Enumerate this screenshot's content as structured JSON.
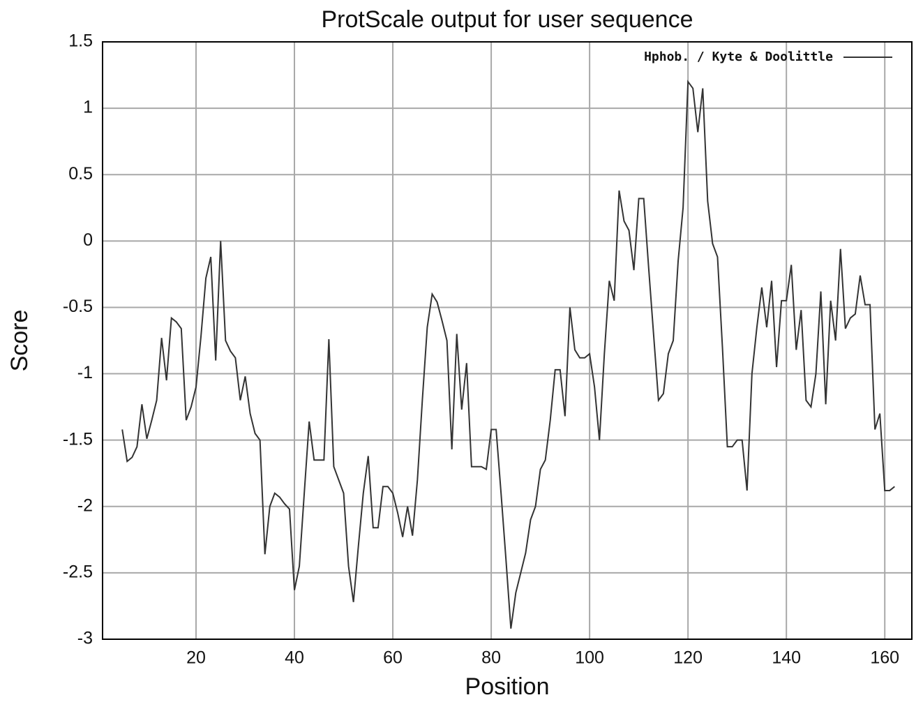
{
  "chart_data": {
    "type": "line",
    "title": "ProtScale output for user sequence",
    "x_label": "Position",
    "y_label": "Score",
    "x": [
      5,
      6,
      7,
      8,
      9,
      10,
      11,
      12,
      13,
      14,
      15,
      16,
      17,
      18,
      19,
      20,
      21,
      22,
      23,
      24,
      25,
      26,
      27,
      28,
      29,
      30,
      31,
      32,
      33,
      34,
      35,
      36,
      37,
      38,
      39,
      40,
      41,
      42,
      43,
      44,
      45,
      46,
      47,
      48,
      49,
      50,
      51,
      52,
      53,
      54,
      55,
      56,
      57,
      58,
      59,
      60,
      61,
      62,
      63,
      64,
      65,
      66,
      67,
      68,
      69,
      70,
      71,
      72,
      73,
      74,
      75,
      76,
      77,
      78,
      79,
      80,
      81,
      82,
      83,
      84,
      85,
      86,
      87,
      88,
      89,
      90,
      91,
      92,
      93,
      94,
      95,
      96,
      97,
      98,
      99,
      100,
      101,
      102,
      103,
      104,
      105,
      106,
      107,
      108,
      109,
      110,
      111,
      112,
      113,
      114,
      115,
      116,
      117,
      118,
      119,
      120,
      121,
      122,
      123,
      124,
      125,
      126,
      127,
      128,
      129,
      130,
      131,
      132,
      133,
      134,
      135,
      136,
      137,
      138,
      139,
      140,
      141,
      142,
      143,
      144,
      145,
      146,
      147,
      148,
      149,
      150,
      151,
      152,
      153,
      154,
      155,
      156,
      157,
      158,
      159,
      160,
      161,
      162
    ],
    "series": [
      {
        "name": "Hphob. / Kyte & Doolittle",
        "color": "#333333",
        "values": [
          -1.42,
          -1.66,
          -1.63,
          -1.55,
          -1.23,
          -1.49,
          -1.35,
          -1.2,
          -0.73,
          -1.05,
          -0.58,
          -0.61,
          -0.66,
          -1.35,
          -1.25,
          -1.1,
          -0.72,
          -0.28,
          -0.12,
          -0.9,
          0.0,
          -0.75,
          -0.83,
          -0.88,
          -1.2,
          -1.02,
          -1.3,
          -1.45,
          -1.5,
          -2.36,
          -2.0,
          -1.9,
          -1.93,
          -1.98,
          -2.02,
          -2.63,
          -2.45,
          -1.9,
          -1.36,
          -1.65,
          -1.65,
          -1.65,
          -0.74,
          -1.7,
          -1.8,
          -1.9,
          -2.45,
          -2.72,
          -2.3,
          -1.9,
          -1.62,
          -2.16,
          -2.16,
          -1.85,
          -1.85,
          -1.9,
          -2.05,
          -2.23,
          -2.0,
          -2.22,
          -1.8,
          -1.2,
          -0.65,
          -0.4,
          -0.46,
          -0.6,
          -0.75,
          -1.57,
          -0.7,
          -1.27,
          -0.92,
          -1.7,
          -1.7,
          -1.7,
          -1.72,
          -1.42,
          -1.42,
          -1.9,
          -2.4,
          -2.92,
          -2.65,
          -2.5,
          -2.35,
          -2.1,
          -2.0,
          -1.72,
          -1.65,
          -1.35,
          -0.97,
          -0.97,
          -1.32,
          -0.5,
          -0.82,
          -0.88,
          -0.88,
          -0.85,
          -1.1,
          -1.5,
          -0.85,
          -0.3,
          -0.45,
          0.38,
          0.15,
          0.08,
          -0.22,
          0.32,
          0.32,
          -0.2,
          -0.7,
          -1.2,
          -1.15,
          -0.85,
          -0.75,
          -0.15,
          0.25,
          1.2,
          1.15,
          0.82,
          1.15,
          0.3,
          -0.02,
          -0.12,
          -0.8,
          -1.55,
          -1.55,
          -1.5,
          -1.5,
          -1.88,
          -1.0,
          -0.65,
          -0.35,
          -0.65,
          -0.3,
          -0.95,
          -0.45,
          -0.45,
          -0.18,
          -0.82,
          -0.52,
          -1.2,
          -1.25,
          -1.0,
          -0.38,
          -1.23,
          -0.45,
          -0.75,
          -0.06,
          -0.66,
          -0.58,
          -0.55,
          -0.26,
          -0.48,
          -0.48,
          -1.42,
          -1.3,
          -1.88,
          -1.88,
          -1.85
        ]
      }
    ],
    "xlim": [
      1,
      165.5
    ],
    "ylim": [
      -3,
      1.5
    ],
    "xticks": [
      20,
      40,
      60,
      80,
      100,
      120,
      140,
      160
    ],
    "yticks": [
      -3,
      -2.5,
      -2,
      -1.5,
      -1,
      -0.5,
      0,
      0.5,
      1,
      1.5
    ],
    "grid": true,
    "legend": "top-right"
  }
}
